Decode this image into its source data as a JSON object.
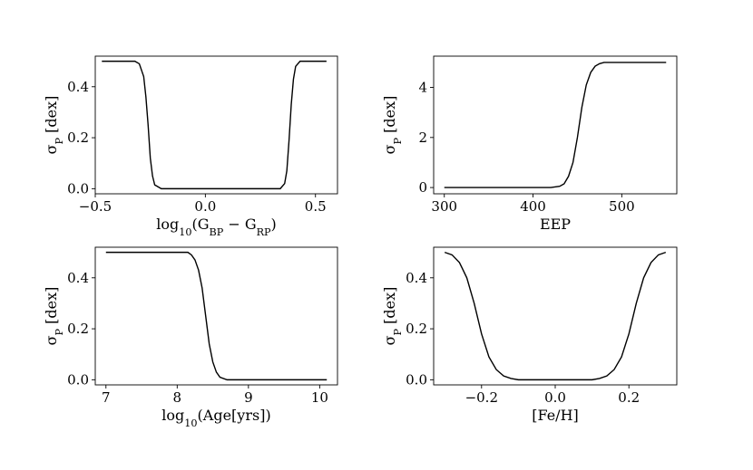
{
  "chart_data": [
    {
      "type": "line",
      "xlabel": "log₁₀(G_BP − G_RP)",
      "ylabel": "σ_P [dex]",
      "xlim": [
        -0.5,
        0.6
      ],
      "ylim": [
        -0.02,
        0.52
      ],
      "x_ticks": [
        -0.5,
        0.0,
        0.5
      ],
      "x_tick_labels": [
        "−0.5",
        "0.0",
        "0.5"
      ],
      "y_ticks": [
        0.0,
        0.2,
        0.4
      ],
      "y_tick_labels": [
        "0.0",
        "0.2",
        "0.4"
      ],
      "grid": false,
      "series": [
        {
          "x": [
            -0.47,
            -0.32,
            -0.3,
            -0.28,
            -0.27,
            -0.26,
            -0.25,
            -0.24,
            -0.23,
            -0.2,
            0.0,
            0.34,
            0.36,
            0.37,
            0.38,
            0.39,
            0.4,
            0.41,
            0.43,
            0.55
          ],
          "y": [
            0.5,
            0.5,
            0.49,
            0.44,
            0.36,
            0.25,
            0.12,
            0.05,
            0.015,
            0.0,
            0.0,
            0.0,
            0.02,
            0.07,
            0.19,
            0.33,
            0.43,
            0.48,
            0.5,
            0.5
          ]
        }
      ]
    },
    {
      "type": "line",
      "xlabel": "EEP",
      "ylabel": "σ_P [dex]",
      "xlim": [
        288,
        562
      ],
      "ylim": [
        -0.25,
        5.25
      ],
      "x_ticks": [
        300,
        400,
        500
      ],
      "x_tick_labels": [
        "300",
        "400",
        "500"
      ],
      "y_ticks": [
        0,
        2,
        4
      ],
      "y_tick_labels": [
        "0",
        "2",
        "4"
      ],
      "grid": false,
      "series": [
        {
          "x": [
            300,
            420,
            430,
            435,
            440,
            445,
            450,
            455,
            460,
            465,
            470,
            475,
            480,
            490,
            550
          ],
          "y": [
            0.0,
            0.0,
            0.05,
            0.15,
            0.45,
            1.0,
            2.0,
            3.2,
            4.1,
            4.6,
            4.85,
            4.95,
            5.0,
            5.0,
            5.0
          ]
        }
      ]
    },
    {
      "type": "line",
      "xlabel": "log₁₀(Age[yrs])",
      "ylabel": "σ_P [dex]",
      "xlim": [
        6.85,
        10.25
      ],
      "ylim": [
        -0.02,
        0.52
      ],
      "x_ticks": [
        7,
        8,
        9,
        10
      ],
      "x_tick_labels": [
        "7",
        "8",
        "9",
        "10"
      ],
      "y_ticks": [
        0.0,
        0.2,
        0.4
      ],
      "y_tick_labels": [
        "0.0",
        "0.2",
        "0.4"
      ],
      "grid": false,
      "series": [
        {
          "x": [
            7.0,
            8.0,
            8.15,
            8.2,
            8.25,
            8.3,
            8.35,
            8.4,
            8.45,
            8.5,
            8.55,
            8.6,
            8.7,
            9.0,
            10.1
          ],
          "y": [
            0.5,
            0.5,
            0.5,
            0.49,
            0.47,
            0.43,
            0.36,
            0.25,
            0.14,
            0.07,
            0.03,
            0.01,
            0.0,
            0.0,
            0.0
          ]
        }
      ]
    },
    {
      "type": "line",
      "xlabel": "[Fe/H]",
      "ylabel": "σ_P [dex]",
      "xlim": [
        -0.33,
        0.33
      ],
      "ylim": [
        -0.02,
        0.52
      ],
      "x_ticks": [
        -0.2,
        0.0,
        0.2
      ],
      "x_tick_labels": [
        "−0.2",
        "0.0",
        "0.2"
      ],
      "y_ticks": [
        0.0,
        0.2,
        0.4
      ],
      "y_tick_labels": [
        "0.0",
        "0.2",
        "0.4"
      ],
      "grid": false,
      "series": [
        {
          "x": [
            -0.3,
            -0.28,
            -0.26,
            -0.24,
            -0.22,
            -0.2,
            -0.18,
            -0.16,
            -0.14,
            -0.12,
            -0.1,
            -0.05,
            0.0,
            0.05,
            0.1,
            0.12,
            0.14,
            0.16,
            0.18,
            0.2,
            0.22,
            0.24,
            0.26,
            0.28,
            0.3
          ],
          "y": [
            0.5,
            0.49,
            0.46,
            0.4,
            0.3,
            0.18,
            0.09,
            0.04,
            0.015,
            0.005,
            0.0,
            0.0,
            0.0,
            0.0,
            0.0,
            0.005,
            0.015,
            0.04,
            0.09,
            0.18,
            0.3,
            0.4,
            0.46,
            0.49,
            0.5
          ]
        }
      ]
    }
  ]
}
